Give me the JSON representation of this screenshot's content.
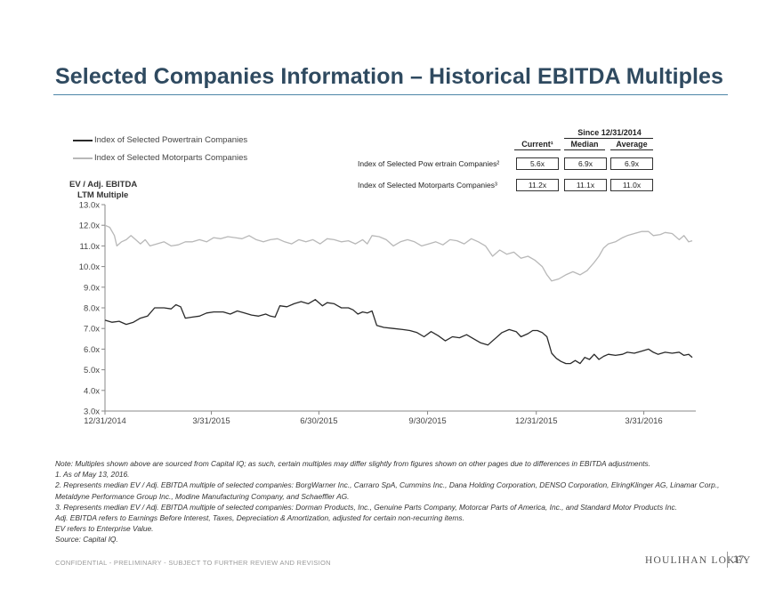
{
  "title": "Selected Companies Information – Historical EBITDA Multiples",
  "legend": [
    {
      "label": "Index of Selected Powertrain Companies",
      "color": "#2a2a2a"
    },
    {
      "label": "Index of Selected Motorparts Companies",
      "color": "#b8b8b8"
    }
  ],
  "stats": {
    "since_label": "Since 12/31/2014",
    "headers": {
      "current": "Current¹",
      "median": "Median",
      "average": "Average"
    },
    "rows": [
      {
        "label": "Index of Selected Pow ertrain Companies²",
        "current": "5.6x",
        "median": "6.9x",
        "average": "6.9x"
      },
      {
        "label": "Index of Selected Motorparts Companies³",
        "current": "11.2x",
        "median": "11.1x",
        "average": "11.0x"
      }
    ]
  },
  "chart_data": {
    "type": "line",
    "ylabel_line1": "EV / Adj. EBITDA",
    "ylabel_line2": "LTM Multiple",
    "ylim": [
      3.0,
      13.0
    ],
    "y_ticks": [
      "3.0x",
      "4.0x",
      "5.0x",
      "6.0x",
      "7.0x",
      "8.0x",
      "9.0x",
      "10.0x",
      "11.0x",
      "12.0x",
      "13.0x"
    ],
    "x_tick_labels": [
      "12/31/2014",
      "3/31/2015",
      "6/30/2015",
      "9/30/2015",
      "12/31/2015",
      "3/31/2016"
    ],
    "x_tick_days": [
      0,
      90,
      181,
      273,
      365,
      456
    ],
    "x_max_days": 500,
    "series": [
      {
        "name": "Index of Selected Powertrain Companies",
        "color": "#2a2a2a",
        "points": [
          [
            0,
            7.4
          ],
          [
            6,
            7.3
          ],
          [
            12,
            7.35
          ],
          [
            18,
            7.2
          ],
          [
            24,
            7.3
          ],
          [
            30,
            7.5
          ],
          [
            36,
            7.6
          ],
          [
            42,
            8.0
          ],
          [
            50,
            8.0
          ],
          [
            56,
            7.95
          ],
          [
            60,
            8.15
          ],
          [
            64,
            8.05
          ],
          [
            68,
            7.5
          ],
          [
            74,
            7.55
          ],
          [
            80,
            7.6
          ],
          [
            86,
            7.75
          ],
          [
            92,
            7.8
          ],
          [
            100,
            7.8
          ],
          [
            106,
            7.7
          ],
          [
            112,
            7.85
          ],
          [
            118,
            7.75
          ],
          [
            124,
            7.65
          ],
          [
            130,
            7.6
          ],
          [
            136,
            7.7
          ],
          [
            140,
            7.6
          ],
          [
            144,
            7.55
          ],
          [
            148,
            8.1
          ],
          [
            154,
            8.05
          ],
          [
            160,
            8.2
          ],
          [
            166,
            8.3
          ],
          [
            172,
            8.2
          ],
          [
            178,
            8.4
          ],
          [
            184,
            8.1
          ],
          [
            188,
            8.25
          ],
          [
            194,
            8.2
          ],
          [
            200,
            8.0
          ],
          [
            206,
            8.0
          ],
          [
            210,
            7.9
          ],
          [
            214,
            7.7
          ],
          [
            218,
            7.8
          ],
          [
            222,
            7.75
          ],
          [
            226,
            7.85
          ],
          [
            230,
            7.15
          ],
          [
            236,
            7.05
          ],
          [
            244,
            7.0
          ],
          [
            252,
            6.95
          ],
          [
            258,
            6.9
          ],
          [
            264,
            6.8
          ],
          [
            270,
            6.6
          ],
          [
            276,
            6.85
          ],
          [
            282,
            6.65
          ],
          [
            288,
            6.4
          ],
          [
            294,
            6.6
          ],
          [
            300,
            6.55
          ],
          [
            306,
            6.7
          ],
          [
            312,
            6.5
          ],
          [
            318,
            6.3
          ],
          [
            324,
            6.2
          ],
          [
            330,
            6.5
          ],
          [
            336,
            6.8
          ],
          [
            342,
            6.95
          ],
          [
            348,
            6.85
          ],
          [
            352,
            6.6
          ],
          [
            358,
            6.75
          ],
          [
            362,
            6.9
          ],
          [
            366,
            6.9
          ],
          [
            370,
            6.8
          ],
          [
            374,
            6.6
          ],
          [
            378,
            5.8
          ],
          [
            382,
            5.55
          ],
          [
            386,
            5.4
          ],
          [
            390,
            5.3
          ],
          [
            394,
            5.3
          ],
          [
            398,
            5.45
          ],
          [
            402,
            5.3
          ],
          [
            406,
            5.6
          ],
          [
            410,
            5.5
          ],
          [
            414,
            5.75
          ],
          [
            418,
            5.5
          ],
          [
            422,
            5.65
          ],
          [
            426,
            5.75
          ],
          [
            432,
            5.7
          ],
          [
            438,
            5.75
          ],
          [
            442,
            5.85
          ],
          [
            448,
            5.8
          ],
          [
            454,
            5.9
          ],
          [
            460,
            6.0
          ],
          [
            464,
            5.85
          ],
          [
            468,
            5.75
          ],
          [
            474,
            5.85
          ],
          [
            480,
            5.8
          ],
          [
            486,
            5.85
          ],
          [
            490,
            5.7
          ],
          [
            494,
            5.75
          ],
          [
            497,
            5.6
          ]
        ]
      },
      {
        "name": "Index of Selected Motorparts Companies",
        "color": "#b8b8b8",
        "points": [
          [
            0,
            12.0
          ],
          [
            4,
            11.9
          ],
          [
            8,
            11.5
          ],
          [
            10,
            11.0
          ],
          [
            14,
            11.2
          ],
          [
            18,
            11.3
          ],
          [
            22,
            11.5
          ],
          [
            26,
            11.3
          ],
          [
            30,
            11.1
          ],
          [
            34,
            11.3
          ],
          [
            38,
            11.0
          ],
          [
            44,
            11.1
          ],
          [
            50,
            11.2
          ],
          [
            56,
            11.0
          ],
          [
            62,
            11.05
          ],
          [
            68,
            11.2
          ],
          [
            74,
            11.2
          ],
          [
            80,
            11.3
          ],
          [
            86,
            11.2
          ],
          [
            92,
            11.4
          ],
          [
            98,
            11.35
          ],
          [
            104,
            11.45
          ],
          [
            110,
            11.4
          ],
          [
            116,
            11.35
          ],
          [
            122,
            11.5
          ],
          [
            128,
            11.3
          ],
          [
            134,
            11.2
          ],
          [
            140,
            11.3
          ],
          [
            146,
            11.35
          ],
          [
            152,
            11.2
          ],
          [
            158,
            11.1
          ],
          [
            164,
            11.3
          ],
          [
            170,
            11.2
          ],
          [
            176,
            11.3
          ],
          [
            182,
            11.1
          ],
          [
            188,
            11.35
          ],
          [
            194,
            11.3
          ],
          [
            200,
            11.2
          ],
          [
            206,
            11.25
          ],
          [
            212,
            11.1
          ],
          [
            218,
            11.3
          ],
          [
            222,
            11.1
          ],
          [
            226,
            11.5
          ],
          [
            232,
            11.45
          ],
          [
            238,
            11.3
          ],
          [
            244,
            11.0
          ],
          [
            250,
            11.2
          ],
          [
            256,
            11.3
          ],
          [
            262,
            11.2
          ],
          [
            268,
            11.0
          ],
          [
            274,
            11.1
          ],
          [
            280,
            11.2
          ],
          [
            286,
            11.05
          ],
          [
            292,
            11.3
          ],
          [
            298,
            11.25
          ],
          [
            304,
            11.1
          ],
          [
            310,
            11.35
          ],
          [
            316,
            11.2
          ],
          [
            322,
            11.0
          ],
          [
            328,
            10.5
          ],
          [
            334,
            10.8
          ],
          [
            340,
            10.6
          ],
          [
            346,
            10.7
          ],
          [
            352,
            10.4
          ],
          [
            358,
            10.5
          ],
          [
            364,
            10.3
          ],
          [
            370,
            10.0
          ],
          [
            374,
            9.6
          ],
          [
            378,
            9.3
          ],
          [
            384,
            9.4
          ],
          [
            390,
            9.6
          ],
          [
            396,
            9.75
          ],
          [
            402,
            9.6
          ],
          [
            408,
            9.8
          ],
          [
            414,
            10.2
          ],
          [
            418,
            10.5
          ],
          [
            422,
            10.9
          ],
          [
            426,
            11.1
          ],
          [
            432,
            11.2
          ],
          [
            438,
            11.4
          ],
          [
            442,
            11.5
          ],
          [
            448,
            11.6
          ],
          [
            454,
            11.7
          ],
          [
            460,
            11.7
          ],
          [
            464,
            11.5
          ],
          [
            470,
            11.55
          ],
          [
            474,
            11.65
          ],
          [
            480,
            11.6
          ],
          [
            486,
            11.3
          ],
          [
            490,
            11.5
          ],
          [
            494,
            11.2
          ],
          [
            497,
            11.25
          ]
        ]
      }
    ]
  },
  "notes": [
    "Note: Multiples shown above are sourced from Capital IQ; as such, certain multiples may differ slightly from figures shown on other pages due to differences in EBITDA adjustments.",
    "1. As of May 13, 2016.",
    "2. Represents median EV / Adj. EBITDA multiple of selected companies: BorgWarner Inc., Carraro SpA, Cummins Inc., Dana Holding Corporation, DENSO Corporation, ElringKlinger AG, Linamar Corp., Metaldyne Performance Group Inc., Modine Manufacturing Company, and Schaeffler AG.",
    "3. Represents median EV / Adj. EBITDA multiple of selected companies: Dorman Products, Inc., Genuine Parts Company, Motorcar Parts of America, Inc., and Standard Motor Products Inc.",
    "Adj. EBITDA refers to Earnings Before Interest, Taxes, Depreciation & Amortization, adjusted for certain non-recurring items.",
    "EV refers to Enterprise Value.",
    "Source: Capital IQ."
  ],
  "footer": {
    "confidential": "CONFIDENTIAL - PRELIMINARY - SUBJECT TO FURTHER REVIEW AND REVISION",
    "brand": "HOULIHAN LOKEY",
    "page_number": "17"
  }
}
